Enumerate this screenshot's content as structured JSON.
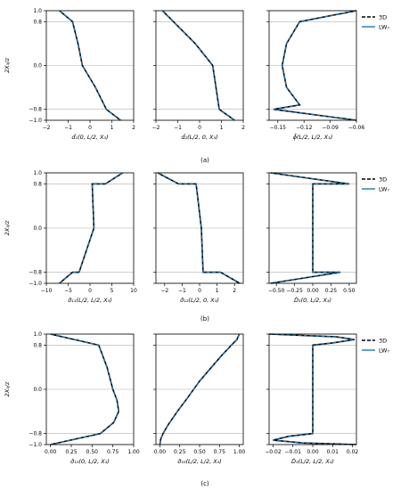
{
  "shared": {
    "y_label": "2X₃/z",
    "y_ticks": [
      -1.0,
      -0.8,
      0.0,
      0.8,
      1.0
    ],
    "y_tick_labels": [
      "−1.0",
      "−0.8",
      "0.0",
      "0.8",
      "1.0"
    ],
    "ylim": [
      -1.0,
      1.0
    ],
    "grid": "horizontal lines at y ticks",
    "legend": [
      "3D",
      "LW₇"
    ],
    "colors": {
      "3D": "#000000",
      "LW7": "#1f77b4"
    }
  },
  "rows": [
    {
      "caption": "(a)"
    },
    {
      "caption": "(b)"
    },
    {
      "caption": "(c)"
    }
  ],
  "chart_data": [
    {
      "type": "line",
      "panel": "a1",
      "xlabel": "d̂₁(0, L/2, X₃)",
      "xlim": [
        -2,
        2
      ],
      "x_ticks": [
        -2,
        -1,
        0,
        1,
        2
      ],
      "x_tick_labels": [
        "−2",
        "−1",
        "0",
        "1",
        "2"
      ],
      "series": [
        {
          "name": "3D",
          "points": [
            [
              -1.4,
              1.0
            ],
            [
              -0.8,
              0.8
            ],
            [
              -0.55,
              0.4
            ],
            [
              -0.35,
              0.0
            ],
            [
              0.25,
              -0.4
            ],
            [
              0.75,
              -0.8
            ],
            [
              1.4,
              -1.0
            ]
          ]
        },
        {
          "name": "LW₇",
          "points": [
            [
              -1.4,
              1.0
            ],
            [
              -0.8,
              0.8
            ],
            [
              -0.55,
              0.4
            ],
            [
              -0.35,
              0.0
            ],
            [
              0.25,
              -0.4
            ],
            [
              0.75,
              -0.8
            ],
            [
              1.4,
              -1.0
            ]
          ]
        }
      ]
    },
    {
      "type": "line",
      "panel": "a2",
      "xlabel": "d̂₂(L/2, 0, X₃)",
      "xlim": [
        -2,
        2
      ],
      "x_ticks": [
        -2,
        -1,
        0,
        1,
        2
      ],
      "x_tick_labels": [
        "−2",
        "−1",
        "0",
        "1",
        "2"
      ],
      "series": [
        {
          "name": "3D",
          "points": [
            [
              -1.7,
              1.0
            ],
            [
              -1.2,
              0.8
            ],
            [
              -0.2,
              0.4
            ],
            [
              0.6,
              0.0
            ],
            [
              0.75,
              -0.4
            ],
            [
              0.9,
              -0.8
            ],
            [
              1.6,
              -1.0
            ]
          ]
        },
        {
          "name": "LW₇",
          "points": [
            [
              -1.7,
              1.0
            ],
            [
              -1.2,
              0.8
            ],
            [
              -0.2,
              0.4
            ],
            [
              0.6,
              0.0
            ],
            [
              0.75,
              -0.4
            ],
            [
              0.9,
              -0.8
            ],
            [
              1.6,
              -1.0
            ]
          ]
        }
      ]
    },
    {
      "type": "line",
      "panel": "a3",
      "xlabel": "ϕ̂(L/2, L/2, X₃)",
      "xlim": [
        -0.16,
        -0.06
      ],
      "x_ticks": [
        -0.15,
        -0.12,
        -0.09,
        -0.06
      ],
      "x_tick_labels": [
        "−0.15",
        "−0.12",
        "−0.09",
        "−0.06"
      ],
      "series": [
        {
          "name": "3D",
          "points": [
            [
              -0.06,
              1.0
            ],
            [
              -0.125,
              0.8
            ],
            [
              -0.14,
              0.4
            ],
            [
              -0.145,
              0.0
            ],
            [
              -0.14,
              -0.4
            ],
            [
              -0.125,
              -0.72
            ],
            [
              -0.155,
              -0.8
            ],
            [
              -0.06,
              -1.0
            ]
          ]
        },
        {
          "name": "LW₇",
          "points": [
            [
              -0.06,
              1.0
            ],
            [
              -0.125,
              0.8
            ],
            [
              -0.14,
              0.4
            ],
            [
              -0.145,
              0.0
            ],
            [
              -0.14,
              -0.4
            ],
            [
              -0.125,
              -0.72
            ],
            [
              -0.155,
              -0.8
            ],
            [
              -0.06,
              -1.0
            ]
          ]
        }
      ]
    },
    {
      "type": "line",
      "panel": "b1",
      "xlabel": "σ̂₁₁(L/2, L/2, X₃)",
      "xlim": [
        -10,
        10
      ],
      "x_ticks": [
        -10,
        -5,
        0,
        5,
        10
      ],
      "x_tick_labels": [
        "−10",
        "−5",
        "0",
        "5",
        "10"
      ],
      "series": [
        {
          "name": "3D",
          "points": [
            [
              7.5,
              1.0
            ],
            [
              3.5,
              0.8
            ],
            [
              0.5,
              0.8
            ],
            [
              0.9,
              0.0
            ],
            [
              -2.5,
              -0.8
            ],
            [
              -4.0,
              -0.8
            ],
            [
              -7.0,
              -1.0
            ]
          ]
        },
        {
          "name": "LW₇",
          "points": [
            [
              7.5,
              1.0
            ],
            [
              3.5,
              0.8
            ],
            [
              0.5,
              0.8
            ],
            [
              0.9,
              0.0
            ],
            [
              -2.5,
              -0.8
            ],
            [
              -4.0,
              -0.8
            ],
            [
              -7.0,
              -1.0
            ]
          ]
        }
      ]
    },
    {
      "type": "line",
      "panel": "b2",
      "xlabel": "σ̂₁₂(L/2, 0, X₃)",
      "xlim": [
        -2.5,
        2.5
      ],
      "x_ticks": [
        -2,
        -1,
        0,
        1,
        2
      ],
      "x_tick_labels": [
        "−2",
        "−1",
        "0",
        "1",
        "2"
      ],
      "series": [
        {
          "name": "3D",
          "points": [
            [
              -2.4,
              1.0
            ],
            [
              -1.2,
              0.8
            ],
            [
              -0.2,
              0.8
            ],
            [
              0.1,
              0.0
            ],
            [
              0.2,
              -0.8
            ],
            [
              1.2,
              -0.8
            ],
            [
              2.3,
              -1.0
            ]
          ]
        },
        {
          "name": "LW₇",
          "points": [
            [
              -2.4,
              1.0
            ],
            [
              -1.2,
              0.8
            ],
            [
              -0.2,
              0.8
            ],
            [
              0.1,
              0.0
            ],
            [
              0.2,
              -0.8
            ],
            [
              1.2,
              -0.8
            ],
            [
              2.3,
              -1.0
            ]
          ]
        }
      ]
    },
    {
      "type": "line",
      "panel": "b3",
      "xlabel": "D̂₁(0, L/2, X₃)",
      "xlim": [
        -0.6,
        0.6
      ],
      "x_ticks": [
        -0.5,
        -0.25,
        0.0,
        0.25,
        0.5
      ],
      "x_tick_labels": [
        "−0.50",
        "−0.25",
        "0.00",
        "0.25",
        "0.50"
      ],
      "series": [
        {
          "name": "3D",
          "points": [
            [
              -0.58,
              1.0
            ],
            [
              0.5,
              0.8
            ],
            [
              0.0,
              0.8
            ],
            [
              0.0,
              -0.8
            ],
            [
              0.38,
              -0.8
            ],
            [
              -0.58,
              -1.0
            ]
          ]
        },
        {
          "name": "LW₇",
          "points": [
            [
              -0.58,
              1.0
            ],
            [
              0.5,
              0.8
            ],
            [
              0.0,
              0.8
            ],
            [
              0.0,
              -0.8
            ],
            [
              0.38,
              -0.8
            ],
            [
              -0.58,
              -1.0
            ]
          ]
        }
      ]
    },
    {
      "type": "line",
      "panel": "c1",
      "xlabel": "σ̂₁₃(0, L/2, X₃)",
      "xlim": [
        -0.05,
        1.0
      ],
      "x_ticks": [
        0.0,
        0.25,
        0.5,
        0.75,
        1.0
      ],
      "x_tick_labels": [
        "0.00",
        "0.25",
        "0.50",
        "0.75",
        "1.00"
      ],
      "series": [
        {
          "name": "3D",
          "points": [
            [
              0.0,
              1.0
            ],
            [
              0.58,
              0.8
            ],
            [
              0.68,
              0.4
            ],
            [
              0.75,
              0.0
            ],
            [
              0.8,
              -0.2
            ],
            [
              0.82,
              -0.4
            ],
            [
              0.76,
              -0.6
            ],
            [
              0.6,
              -0.8
            ],
            [
              0.0,
              -1.0
            ]
          ]
        },
        {
          "name": "LW₇",
          "points": [
            [
              0.0,
              1.0
            ],
            [
              0.58,
              0.8
            ],
            [
              0.68,
              0.4
            ],
            [
              0.75,
              0.0
            ],
            [
              0.8,
              -0.2
            ],
            [
              0.82,
              -0.4
            ],
            [
              0.76,
              -0.6
            ],
            [
              0.6,
              -0.8
            ],
            [
              0.0,
              -1.0
            ]
          ]
        }
      ]
    },
    {
      "type": "line",
      "panel": "c2",
      "xlabel": "σ̂₃₃(L/2, L/2, X₃)",
      "xlim": [
        -0.05,
        1.05
      ],
      "x_ticks": [
        0.0,
        0.25,
        0.5,
        0.75,
        1.0
      ],
      "x_tick_labels": [
        "0.00",
        "0.25",
        "0.50",
        "0.75",
        "1.00"
      ],
      "series": [
        {
          "name": "3D",
          "points": [
            [
              1.0,
              1.0
            ],
            [
              0.97,
              0.9
            ],
            [
              0.9,
              0.8
            ],
            [
              0.77,
              0.6
            ],
            [
              0.65,
              0.4
            ],
            [
              0.5,
              0.15
            ],
            [
              0.35,
              -0.15
            ],
            [
              0.22,
              -0.4
            ],
            [
              0.1,
              -0.65
            ],
            [
              0.04,
              -0.8
            ],
            [
              0.01,
              -0.9
            ],
            [
              0.0,
              -1.0
            ]
          ]
        },
        {
          "name": "LW₇",
          "points": [
            [
              1.0,
              1.0
            ],
            [
              0.97,
              0.9
            ],
            [
              0.9,
              0.8
            ],
            [
              0.77,
              0.6
            ],
            [
              0.65,
              0.4
            ],
            [
              0.5,
              0.15
            ],
            [
              0.35,
              -0.15
            ],
            [
              0.22,
              -0.4
            ],
            [
              0.1,
              -0.65
            ],
            [
              0.04,
              -0.8
            ],
            [
              0.01,
              -0.9
            ],
            [
              0.0,
              -1.0
            ]
          ]
        }
      ]
    },
    {
      "type": "line",
      "panel": "c3",
      "xlabel": "D̂₃(L/2, L/2, X₃)",
      "xlim": [
        -0.022,
        0.022
      ],
      "x_ticks": [
        -0.02,
        -0.01,
        0.0,
        0.01,
        0.02
      ],
      "x_tick_labels": [
        "−0.02",
        "−0.01",
        "0.00",
        "0.01",
        "0.02"
      ],
      "series": [
        {
          "name": "3D",
          "points": [
            [
              -0.022,
              1.0
            ],
            [
              0.012,
              0.95
            ],
            [
              0.021,
              0.9
            ],
            [
              0.01,
              0.84
            ],
            [
              0.0,
              0.8
            ],
            [
              0.0,
              -0.8
            ],
            [
              -0.012,
              -0.85
            ],
            [
              -0.02,
              -0.92
            ],
            [
              -0.005,
              -0.97
            ],
            [
              0.022,
              -1.0
            ]
          ]
        },
        {
          "name": "LW₇",
          "points": [
            [
              -0.022,
              1.0
            ],
            [
              0.012,
              0.95
            ],
            [
              0.021,
              0.9
            ],
            [
              0.01,
              0.84
            ],
            [
              0.0,
              0.8
            ],
            [
              0.0,
              -0.8
            ],
            [
              -0.012,
              -0.85
            ],
            [
              -0.02,
              -0.92
            ],
            [
              -0.005,
              -0.97
            ],
            [
              0.022,
              -1.0
            ]
          ]
        }
      ]
    }
  ]
}
